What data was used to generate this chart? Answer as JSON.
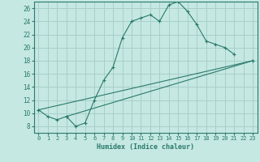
{
  "xlabel": "Humidex (Indice chaleur)",
  "bg_color": "#c5e8e3",
  "grid_color": "#a8cfc8",
  "line_color": "#2a7a6a",
  "line1_x": [
    0,
    1,
    2,
    3,
    4,
    5,
    6,
    7,
    8,
    9,
    10,
    11,
    12,
    13,
    14,
    15,
    16,
    17,
    18,
    19,
    20,
    21
  ],
  "line1_y": [
    10.5,
    9.5,
    9.0,
    9.5,
    8.0,
    8.5,
    12.0,
    15.0,
    17.0,
    21.5,
    24.0,
    24.5,
    25.0,
    24.0,
    26.5,
    27.0,
    25.5,
    23.5,
    21.0,
    20.5,
    20.0,
    19.0
  ],
  "line2_x": [
    0,
    23
  ],
  "line2_y": [
    10.5,
    18.0
  ],
  "line3_x": [
    3,
    23
  ],
  "line3_y": [
    9.5,
    18.0
  ],
  "xlim": [
    -0.5,
    23.5
  ],
  "ylim": [
    7,
    27
  ],
  "yticks": [
    8,
    10,
    12,
    14,
    16,
    18,
    20,
    22,
    24,
    26
  ],
  "xticks": [
    0,
    1,
    2,
    3,
    4,
    5,
    6,
    7,
    8,
    9,
    10,
    11,
    12,
    13,
    14,
    15,
    16,
    17,
    18,
    19,
    20,
    21,
    22,
    23
  ]
}
